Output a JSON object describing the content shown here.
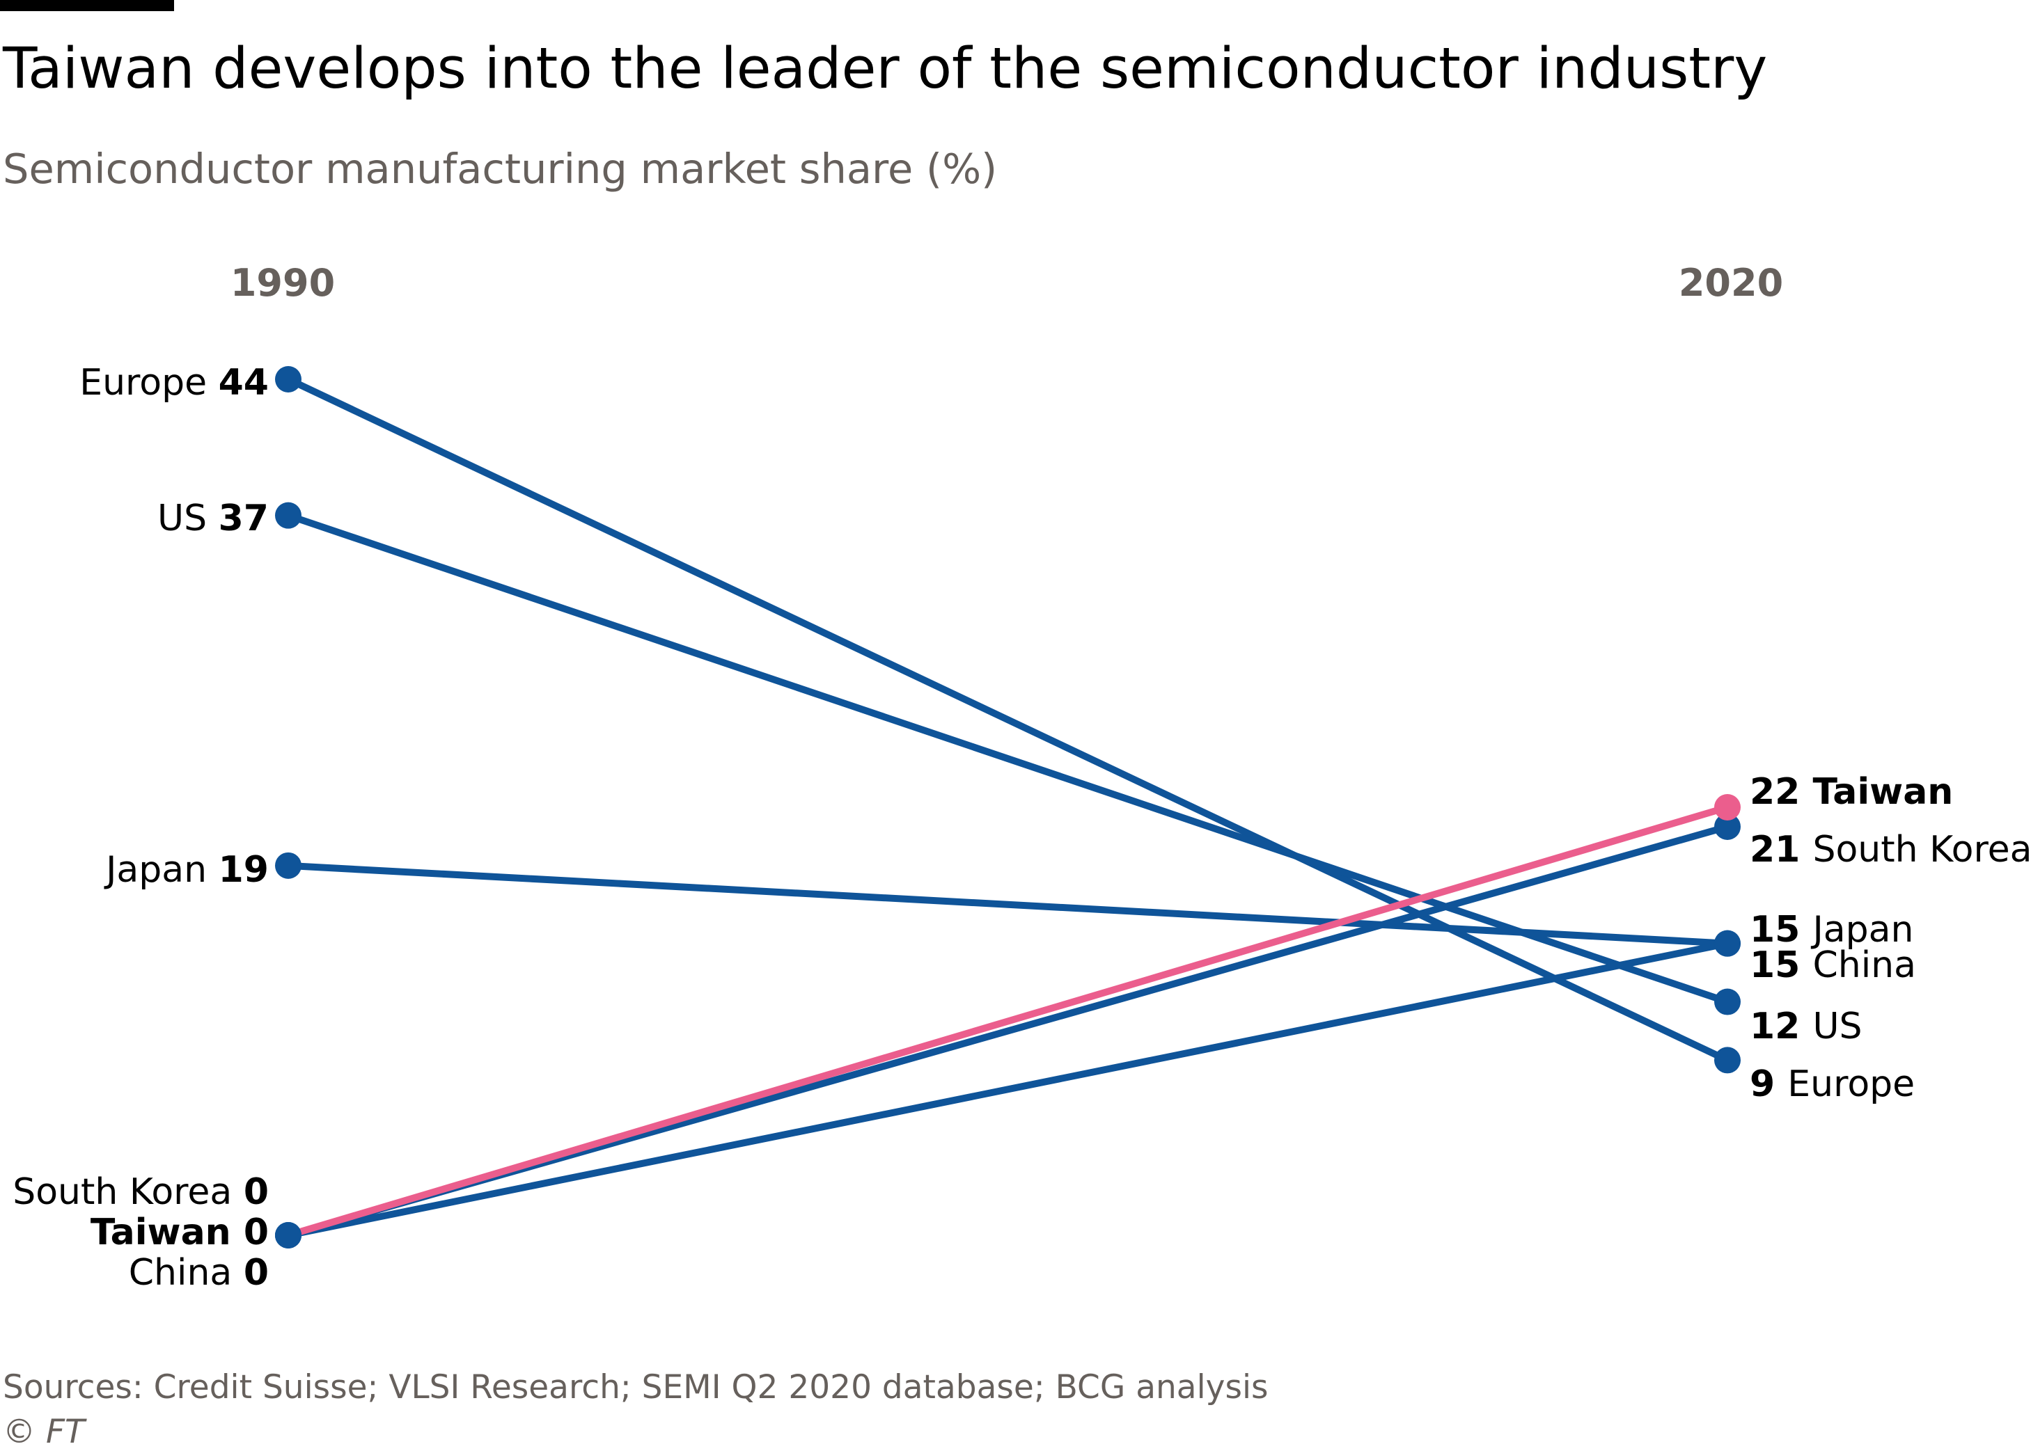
{
  "title": "Taiwan develops into the leader of the semiconductor industry",
  "subtitle": "Semiconductor manufacturing market share (%)",
  "source": "Sources: Credit Suisse; VLSI Research; SEMI Q2 2020 database; BCG analysis",
  "copyright": "© FT",
  "colors": {
    "series": "#0f5499",
    "highlight": "#eb5e8d",
    "label": "#000000",
    "muted": "#66605c"
  },
  "chart_data": {
    "type": "line",
    "chart_style": "slope",
    "x": [
      "1990",
      "2020"
    ],
    "ylim": [
      0,
      44
    ],
    "series": [
      {
        "name": "Europe",
        "values": [
          44,
          9
        ],
        "highlight": false
      },
      {
        "name": "US",
        "values": [
          37,
          12
        ],
        "highlight": false
      },
      {
        "name": "Japan",
        "values": [
          19,
          15
        ],
        "highlight": false
      },
      {
        "name": "China",
        "values": [
          0,
          15
        ],
        "highlight": false
      },
      {
        "name": "South Korea",
        "values": [
          0,
          21
        ],
        "highlight": false
      },
      {
        "name": "Taiwan",
        "values": [
          0,
          22
        ],
        "highlight": true
      }
    ],
    "labels_1990": [
      {
        "name": "Europe",
        "value": "44",
        "bold_name": false
      },
      {
        "name": "US",
        "value": "37",
        "bold_name": false
      },
      {
        "name": "Japan",
        "value": "19",
        "bold_name": false
      },
      {
        "name": "South Korea",
        "value": "0",
        "bold_name": false
      },
      {
        "name": "Taiwan",
        "value": "0",
        "bold_name": true
      },
      {
        "name": "China",
        "value": "0",
        "bold_name": false
      }
    ],
    "labels_2020": [
      {
        "value": "22",
        "name": "Taiwan",
        "bold_name": true
      },
      {
        "value": "21",
        "name": "South Korea",
        "bold_name": false
      },
      {
        "value": "15",
        "name": "Japan",
        "bold_name": false
      },
      {
        "value": "15",
        "name": "China",
        "bold_name": false
      },
      {
        "value": "12",
        "name": "US",
        "bold_name": false
      },
      {
        "value": "9",
        "name": "Europe",
        "bold_name": false
      }
    ]
  }
}
